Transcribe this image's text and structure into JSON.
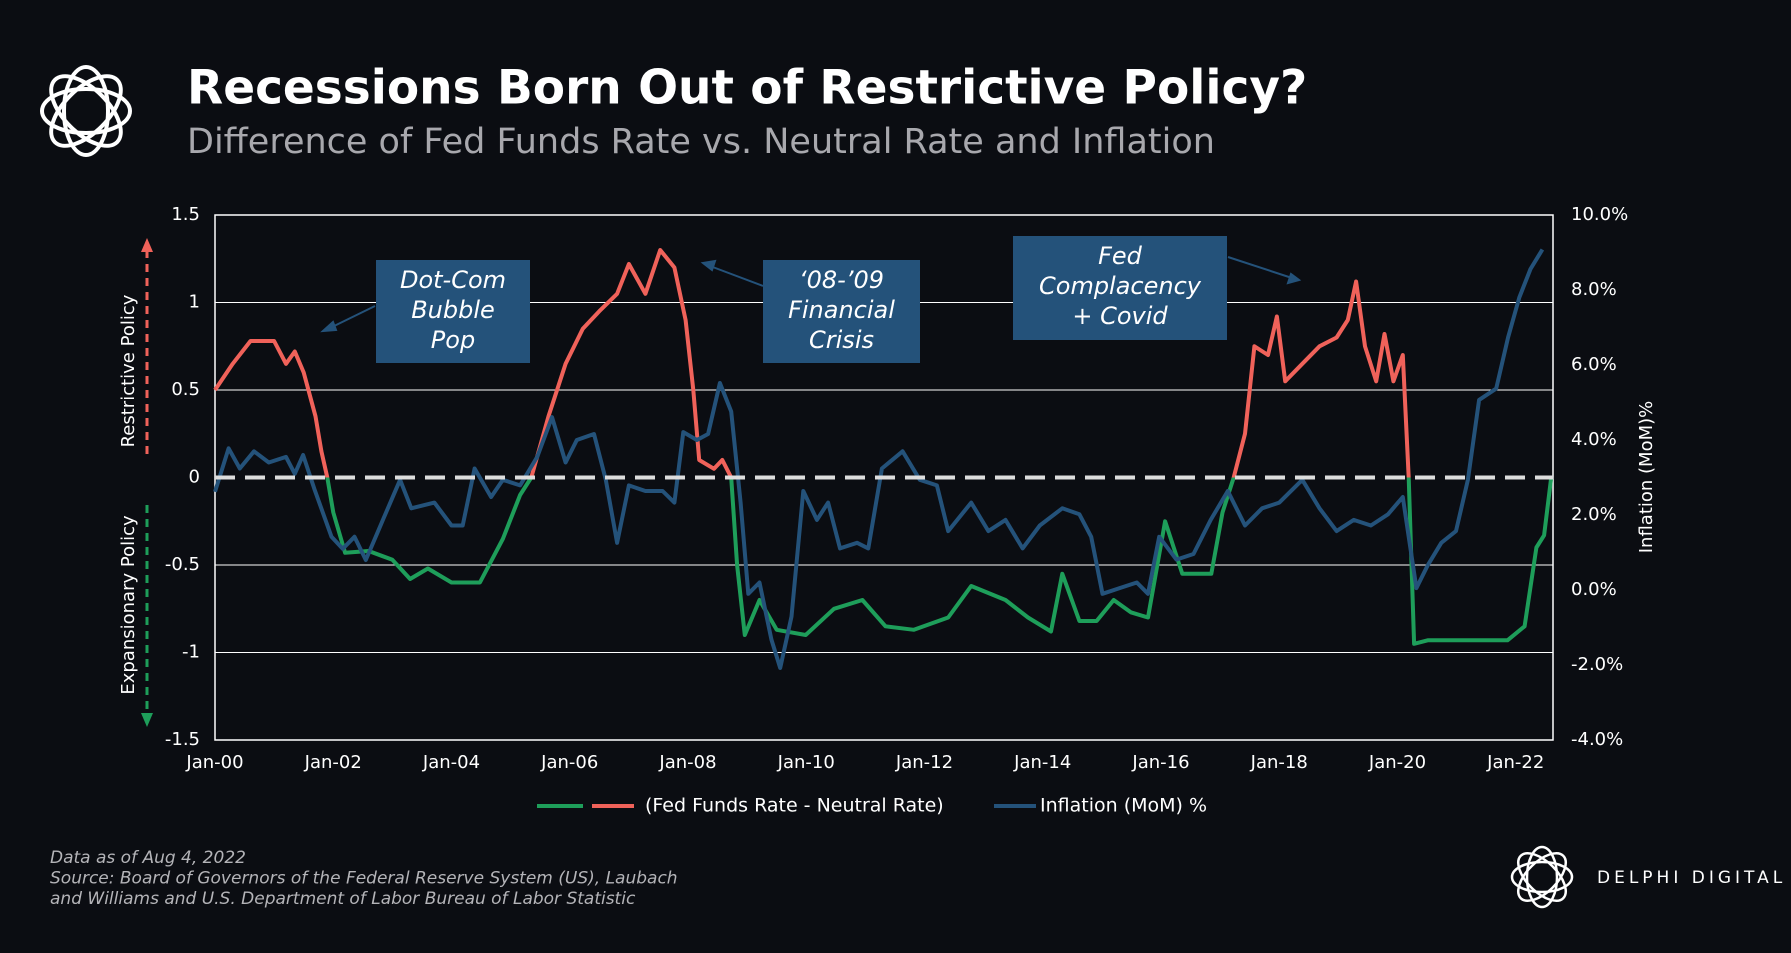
{
  "header": {
    "title": "Recessions Born Out of Restrictive Policy?",
    "subtitle": "Difference of Fed Funds Rate vs. Neutral Rate and Inflation"
  },
  "chart_data": {
    "type": "line",
    "xlim": [
      2000,
      2022.63
    ],
    "xticks": [
      {
        "value": 2000,
        "label": "Jan-00"
      },
      {
        "value": 2002,
        "label": "Jan-02"
      },
      {
        "value": 2004,
        "label": "Jan-04"
      },
      {
        "value": 2006,
        "label": "Jan-06"
      },
      {
        "value": 2008,
        "label": "Jan-08"
      },
      {
        "value": 2010,
        "label": "Jan-10"
      },
      {
        "value": 2012,
        "label": "Jan-12"
      },
      {
        "value": 2014,
        "label": "Jan-14"
      },
      {
        "value": 2016,
        "label": "Jan-16"
      },
      {
        "value": 2018,
        "label": "Jan-18"
      },
      {
        "value": 2020,
        "label": "Jan-20"
      },
      {
        "value": 2022,
        "label": "Jan-22"
      }
    ],
    "ylim": [
      -1.5,
      1.5
    ],
    "yticks": [
      1.5,
      1,
      0.5,
      0,
      -0.5,
      -1,
      -1.5
    ],
    "y2lim": [
      -4,
      10
    ],
    "y2ticks": [
      {
        "value": 10,
        "label": "10.0%"
      },
      {
        "value": 8,
        "label": "8.0%"
      },
      {
        "value": 6,
        "label": "6.0%"
      },
      {
        "value": 4,
        "label": "4.0%"
      },
      {
        "value": 2,
        "label": "2.0%"
      },
      {
        "value": 0,
        "label": "0.0%"
      },
      {
        "value": -2,
        "label": "-2.0%"
      },
      {
        "value": -4,
        "label": "-4.0%"
      }
    ],
    "y_label_top": "Restrictive Policy",
    "y_label_bottom": "Expansionary Policy",
    "y2_label": "Inflation (MoM)%",
    "grid": true,
    "series": [
      {
        "name": "(Fed Funds Rate - Neutral Rate)",
        "color": "#f0625a",
        "negative_color": "#1e9e5a",
        "x": [
          2000,
          2000.3,
          2000.6,
          2001,
          2001.2,
          2001.35,
          2001.5,
          2001.7,
          2001.8,
          2001.9,
          2002,
          2002.2,
          2002.6,
          2003,
          2003.3,
          2003.6,
          2004,
          2004.48,
          2004.87,
          2005.16,
          2005.35,
          2005.64,
          2005.93,
          2006.22,
          2006.5,
          2006.8,
          2007,
          2007.28,
          2007.53,
          2007.77,
          2007.96,
          2008.09,
          2008.19,
          2008.44,
          2008.58,
          2008.73,
          2008.83,
          2008.96,
          2009.21,
          2009.5,
          2009.99,
          2010.47,
          2010.95,
          2011.34,
          2011.82,
          2012.4,
          2012.79,
          2013.37,
          2013.75,
          2014.14,
          2014.33,
          2014.62,
          2014.91,
          2015.2,
          2015.49,
          2015.78,
          2016.07,
          2016.36,
          2016.85,
          2017.04,
          2017.23,
          2017.42,
          2017.58,
          2017.81,
          2017.96,
          2018.1,
          2018.39,
          2018.68,
          2018.97,
          2019.16,
          2019.3,
          2019.45,
          2019.64,
          2019.78,
          2019.93,
          2020.09,
          2020.19,
          2020.28,
          2020.51,
          2021.86,
          2022.15,
          2022.35,
          2022.48,
          2022.6
        ],
        "values": [
          0.5,
          0.65,
          0.78,
          0.78,
          0.65,
          0.72,
          0.6,
          0.35,
          0.15,
          0,
          -0.2,
          -0.43,
          -0.42,
          -0.47,
          -0.58,
          -0.52,
          -0.6,
          -0.6,
          -0.35,
          -0.1,
          0,
          0.35,
          0.65,
          0.85,
          0.95,
          1.05,
          1.22,
          1.05,
          1.3,
          1.2,
          0.9,
          0.5,
          0.1,
          0.05,
          0.1,
          0,
          -0.5,
          -0.9,
          -0.7,
          -0.87,
          -0.9,
          -0.75,
          -0.7,
          -0.85,
          -0.87,
          -0.8,
          -0.62,
          -0.7,
          -0.8,
          -0.88,
          -0.55,
          -0.82,
          -0.82,
          -0.7,
          -0.77,
          -0.8,
          -0.25,
          -0.55,
          -0.55,
          -0.2,
          0,
          0.25,
          0.75,
          0.7,
          0.92,
          0.55,
          0.65,
          0.75,
          0.8,
          0.9,
          1.12,
          0.75,
          0.55,
          0.82,
          0.55,
          0.7,
          0,
          -0.95,
          -0.93,
          -0.93,
          -0.85,
          -0.4,
          -0.33,
          0
        ]
      },
      {
        "name": "Inflation (MoM) %",
        "color": "#24527a",
        "axis": "y2",
        "x": [
          2000,
          2000.23,
          2000.42,
          2000.66,
          2000.91,
          2001.2,
          2001.35,
          2001.49,
          2001.68,
          2001.97,
          2002.16,
          2002.36,
          2002.55,
          2002.84,
          2003.13,
          2003.32,
          2003.71,
          2004,
          2004.19,
          2004.39,
          2004.67,
          2004.87,
          2005.16,
          2005.45,
          2005.7,
          2005.93,
          2006.12,
          2006.41,
          2006.61,
          2006.8,
          2007,
          2007.28,
          2007.57,
          2007.77,
          2007.92,
          2008.15,
          2008.34,
          2008.54,
          2008.73,
          2008.89,
          2009.02,
          2009.21,
          2009.41,
          2009.56,
          2009.75,
          2009.95,
          2010.18,
          2010.37,
          2010.57,
          2010.86,
          2011.05,
          2011.28,
          2011.63,
          2011.92,
          2012.21,
          2012.4,
          2012.79,
          2013.08,
          2013.37,
          2013.66,
          2013.95,
          2014.33,
          2014.62,
          2014.82,
          2015.01,
          2015.3,
          2015.59,
          2015.78,
          2015.97,
          2016.26,
          2016.55,
          2016.84,
          2017.13,
          2017.42,
          2017.71,
          2018,
          2018.39,
          2018.68,
          2018.97,
          2019.26,
          2019.55,
          2019.84,
          2020.09,
          2020.19,
          2020.32,
          2020.51,
          2020.74,
          2020.99,
          2021.19,
          2021.38,
          2021.67,
          2021.87,
          2022.06,
          2022.25,
          2022.45
        ],
        "values": [
          2.62,
          3.78,
          3.24,
          3.7,
          3.4,
          3.55,
          3.1,
          3.6,
          2.7,
          1.42,
          1.1,
          1.42,
          0.8,
          1.87,
          2.94,
          2.18,
          2.33,
          1.72,
          1.72,
          3.24,
          2.48,
          2.94,
          2.79,
          3.55,
          4.61,
          3.4,
          4,
          4.16,
          2.94,
          1.26,
          2.79,
          2.64,
          2.64,
          2.33,
          4.21,
          4,
          4.16,
          5.52,
          4.76,
          2.33,
          -0.1,
          0.2,
          -1.32,
          -2.08,
          -0.71,
          2.64,
          1.87,
          2.33,
          1.11,
          1.26,
          1.11,
          3.24,
          3.7,
          2.94,
          2.79,
          1.57,
          2.33,
          1.57,
          1.87,
          1.11,
          1.72,
          2.18,
          2.02,
          1.42,
          -0.1,
          0.05,
          0.2,
          -0.1,
          1.42,
          0.81,
          0.96,
          1.87,
          2.64,
          1.72,
          2.18,
          2.33,
          2.94,
          2.18,
          1.57,
          1.87,
          1.72,
          2.02,
          2.48,
          1.42,
          0.05,
          0.66,
          1.26,
          1.57,
          2.94,
          5.07,
          5.37,
          6.74,
          7.8,
          8.56,
          9.08
        ]
      }
    ],
    "annotations": [
      {
        "lines": [
          "Dot-Com",
          "Bubble",
          "Pop"
        ]
      },
      {
        "lines": [
          "‘08-’09",
          "Financial",
          "Crisis"
        ]
      },
      {
        "lines": [
          "Fed",
          "Complacency",
          "+ Covid"
        ]
      }
    ]
  },
  "footer": {
    "notes": [
      "Data as of Aug 4, 2022",
      "Source: Board of Governors of the Federal Reserve System (US), Laubach",
      "and Williams and U.S. Department of Labor Bureau of Labor Statistic"
    ],
    "brand": "DELPHI DIGITAL"
  }
}
